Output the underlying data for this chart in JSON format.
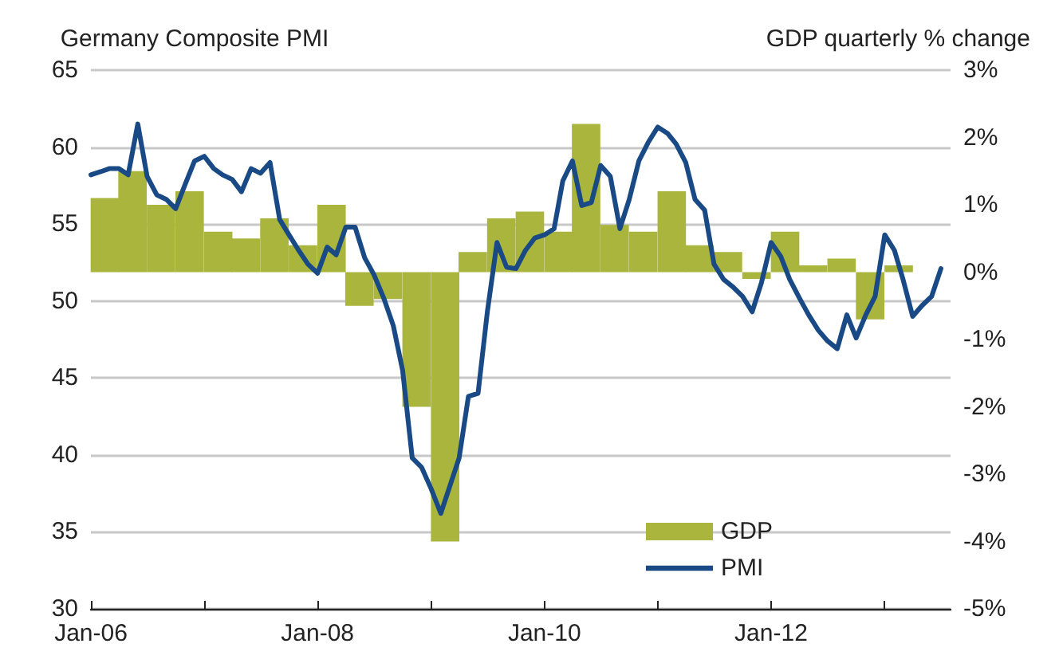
{
  "chart_data": {
    "type": "bar",
    "ylabel": "Germany Composite PMI",
    "y2label": "GDP quarterly % change",
    "xlim": [
      "2006-01",
      "2013-08"
    ],
    "xticks": [
      {
        "value": "2006-01",
        "label": "Jan-06"
      },
      {
        "value": "2007-01",
        "label": null
      },
      {
        "value": "2008-01",
        "label": "Jan-08"
      },
      {
        "value": "2009-01",
        "label": null
      },
      {
        "value": "2010-01",
        "label": "Jan-10"
      },
      {
        "value": "2011-01",
        "label": null
      },
      {
        "value": "2012-01",
        "label": "Jan-12"
      },
      {
        "value": "2013-01",
        "label": null
      }
    ],
    "ylim": [
      30,
      65
    ],
    "yticks": [
      30,
      35,
      40,
      45,
      50,
      55,
      60,
      65
    ],
    "y2lim": [
      -5,
      3
    ],
    "y2ticks": [
      {
        "value": -5,
        "label": "-5%"
      },
      {
        "value": -4,
        "label": "-4%"
      },
      {
        "value": -3,
        "label": "-3%"
      },
      {
        "value": -2,
        "label": "-2%"
      },
      {
        "value": -1,
        "label": "-1%"
      },
      {
        "value": 0,
        "label": "0%"
      },
      {
        "value": 1,
        "label": "1%"
      },
      {
        "value": 2,
        "label": "2%"
      },
      {
        "value": 3,
        "label": "3%"
      }
    ],
    "grid": "y",
    "legend": "bottom",
    "series": [
      {
        "name": "GDP",
        "axis": "y2",
        "color": "#a9b53c",
        "x": [
          "2006-02-15",
          "2006-05-15",
          "2006-08-15",
          "2006-11-15",
          "2007-02-15",
          "2007-05-15",
          "2007-08-15",
          "2007-11-15",
          "2008-02-15",
          "2008-05-15",
          "2008-08-15",
          "2008-11-15",
          "2009-02-15",
          "2009-05-15",
          "2009-08-15",
          "2009-11-15",
          "2010-02-15",
          "2010-05-15",
          "2010-08-15",
          "2010-11-15",
          "2011-02-15",
          "2011-05-15",
          "2011-08-15",
          "2011-11-15",
          "2012-02-15",
          "2012-05-15",
          "2012-08-15",
          "2012-11-15",
          "2013-02-15"
        ],
        "values": [
          1.1,
          1.5,
          1.0,
          1.2,
          0.6,
          0.5,
          0.8,
          0.4,
          1.0,
          -0.5,
          -0.4,
          -2.0,
          -4.0,
          0.3,
          0.8,
          0.9,
          0.6,
          2.2,
          0.7,
          0.6,
          1.2,
          0.4,
          0.3,
          -0.1,
          0.6,
          0.1,
          0.2,
          -0.7,
          0.1
        ]
      },
      {
        "name": "PMI",
        "type": "line",
        "color": "#1a4a85",
        "marker": "none",
        "line_style": "solid",
        "x": [
          "2006-01",
          "2006-02",
          "2006-03",
          "2006-04",
          "2006-05",
          "2006-06",
          "2006-07",
          "2006-08",
          "2006-09",
          "2006-10",
          "2006-11",
          "2006-12",
          "2007-01",
          "2007-02",
          "2007-03",
          "2007-04",
          "2007-05",
          "2007-06",
          "2007-07",
          "2007-08",
          "2007-09",
          "2007-10",
          "2007-11",
          "2007-12",
          "2008-01",
          "2008-02",
          "2008-03",
          "2008-04",
          "2008-05",
          "2008-06",
          "2008-07",
          "2008-08",
          "2008-09",
          "2008-10",
          "2008-11",
          "2008-12",
          "2009-01",
          "2009-02",
          "2009-03",
          "2009-04",
          "2009-05",
          "2009-06",
          "2009-07",
          "2009-08",
          "2009-09",
          "2009-10",
          "2009-11",
          "2009-12",
          "2010-01",
          "2010-02",
          "2010-03",
          "2010-04",
          "2010-05",
          "2010-06",
          "2010-07",
          "2010-08",
          "2010-09",
          "2010-10",
          "2010-11",
          "2010-12",
          "2011-01",
          "2011-02",
          "2011-03",
          "2011-04",
          "2011-05",
          "2011-06",
          "2011-07",
          "2011-08",
          "2011-09",
          "2011-10",
          "2011-11",
          "2011-12",
          "2012-01",
          "2012-02",
          "2012-03",
          "2012-04",
          "2012-05",
          "2012-06",
          "2012-07",
          "2012-08",
          "2012-09",
          "2012-10",
          "2012-11",
          "2012-12",
          "2013-01",
          "2013-02",
          "2013-03",
          "2013-04",
          "2013-05",
          "2013-06",
          "2013-07"
        ],
        "values": [
          58.2,
          58.4,
          58.6,
          58.6,
          58.2,
          61.5,
          58.1,
          56.9,
          56.6,
          56.0,
          57.6,
          59.1,
          59.4,
          58.6,
          58.2,
          57.9,
          57.1,
          58.6,
          58.3,
          59.0,
          55.3,
          54.3,
          53.3,
          52.4,
          51.8,
          53.5,
          53.0,
          54.8,
          54.8,
          52.8,
          51.7,
          50.2,
          48.4,
          45.5,
          39.8,
          39.2,
          37.8,
          36.2,
          37.9,
          39.8,
          43.8,
          44.0,
          49.3,
          53.8,
          52.2,
          52.1,
          53.3,
          54.1,
          54.3,
          54.7,
          57.8,
          59.1,
          56.2,
          56.4,
          58.8,
          58.1,
          54.7,
          56.6,
          59.1,
          60.3,
          61.3,
          60.9,
          60.2,
          59.0,
          56.6,
          55.9,
          52.4,
          51.4,
          50.9,
          50.3,
          49.3,
          51.2,
          53.8,
          52.9,
          51.4,
          50.2,
          49.1,
          48.1,
          47.4,
          46.9,
          49.1,
          47.6,
          49.1,
          50.3,
          54.3,
          53.3,
          51.4,
          49.0,
          49.7,
          50.3,
          52.1
        ]
      }
    ]
  }
}
